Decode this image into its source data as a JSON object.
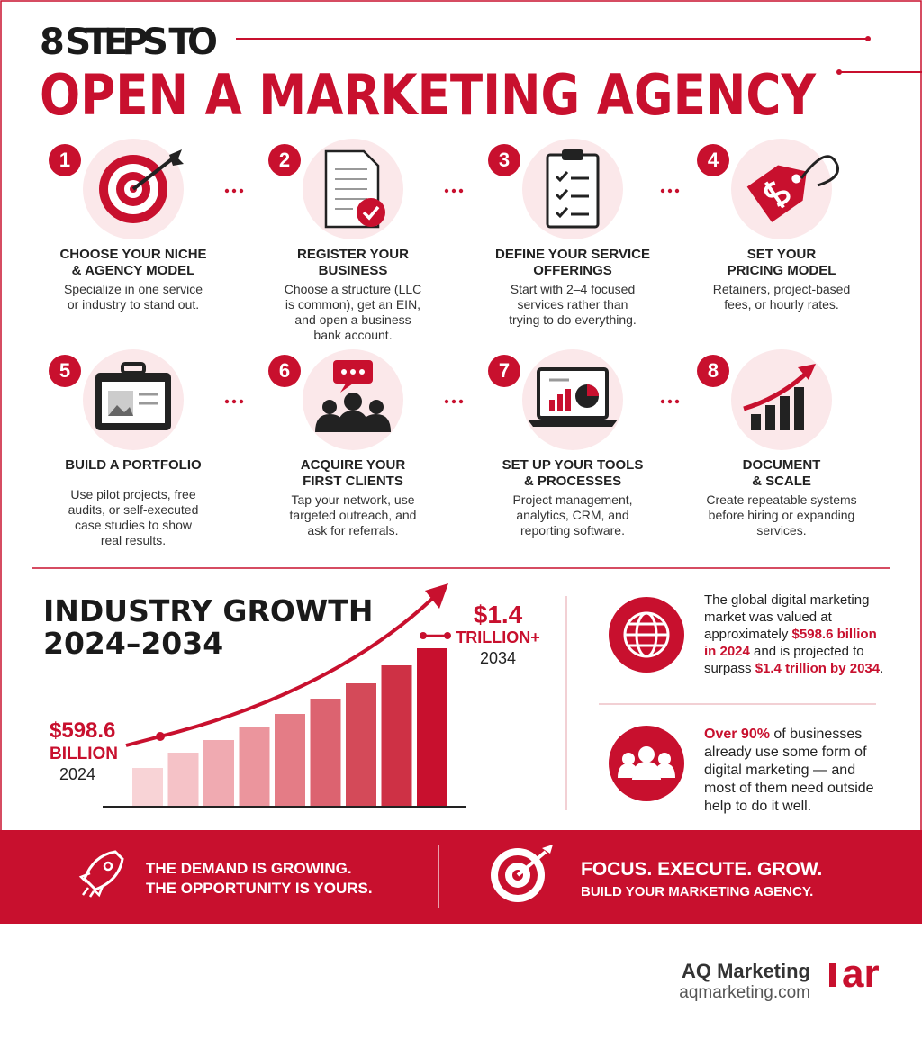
{
  "header": {
    "kicker": "8 STEPS TO",
    "title": "OPEN A MARKETING AGENCY"
  },
  "steps": [
    {
      "number": "1",
      "title": [
        "CHOOSE YOUR NICHE",
        "& AGENCY MODEL"
      ],
      "text": [
        "Specialize in one service",
        "or industry to stand out."
      ]
    },
    {
      "number": "2",
      "title": [
        "REGISTER YOUR",
        "BUSINESS"
      ],
      "text": [
        "Choose a structure (LLC",
        "is common), get an EIN,",
        "and open a business",
        "bank account."
      ]
    },
    {
      "number": "3",
      "title": [
        "DEFINE YOUR SERVICE",
        "OFFERINGS"
      ],
      "text": [
        "Start with 2–4 focused",
        "services rather than",
        "trying to do everything."
      ]
    },
    {
      "number": "4",
      "title": [
        "SET YOUR",
        "PRICING MODEL"
      ],
      "text": [
        "Retainers, project-based",
        "fees, or hourly rates."
      ]
    },
    {
      "number": "5",
      "title": [
        "BUILD A PORTFOLIO"
      ],
      "text": [
        "Use pilot projects, free",
        "audits, or self-executed",
        "case studies to show",
        "real results."
      ]
    },
    {
      "number": "6",
      "title": [
        "ACQUIRE YOUR",
        "FIRST CLIENTS"
      ],
      "text": [
        "Tap your network, use",
        "targeted outreach, and",
        "ask for referrals."
      ]
    },
    {
      "number": "7",
      "title": [
        "SET UP YOUR TOOLS",
        "& PROCESSES"
      ],
      "text": [
        "Project management,",
        "analytics, CRM, and",
        "reporting software."
      ]
    },
    {
      "number": "8",
      "title": [
        "DOCUMENT",
        "& SCALE"
      ],
      "text": [
        "Create repeatable systems",
        "before hiring or expanding",
        "services."
      ]
    }
  ],
  "growth": {
    "title": [
      "INDUSTRY GROWTH",
      "2024–2034"
    ],
    "start_value": [
      "$598.6",
      "BILLION"
    ],
    "start_year": "2024",
    "end_value": [
      "$1.4",
      "TRILLION+"
    ],
    "end_year": "2034"
  },
  "facts": [
    {
      "segments": [
        {
          "text": "The global digital marketing market was valued at approximately "
        },
        {
          "text": "$598.6 billion in 2024",
          "highlight": true
        },
        {
          "text": " and is projected to surpass "
        },
        {
          "text": "$1.4 trillion by 2034",
          "highlight": true
        },
        {
          "text": "."
        }
      ]
    },
    {
      "segments": [
        {
          "text": "Over 90%",
          "highlight": true
        },
        {
          "text": " of businesses already use some form of digital marketing — and most of them need outside help to do it well."
        }
      ]
    }
  ],
  "banner": {
    "left": [
      "THE DEMAND IS GROWING.",
      "THE OPPORTUNITY IS YOURS."
    ],
    "right": [
      "FOCUS. EXECUTE. GROW.",
      "BUILD YOUR MARKETING AGENCY."
    ]
  },
  "footer": {
    "company": "AQ Marketing",
    "url": "aqmarketing.com",
    "logo": "ar"
  }
}
